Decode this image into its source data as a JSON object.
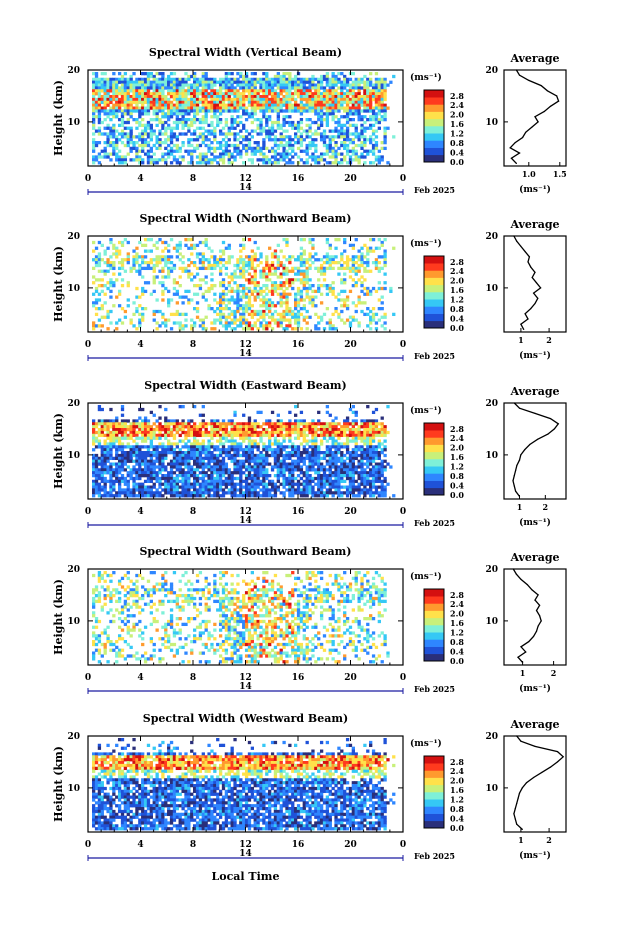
{
  "figure": {
    "date_label": "Feb 2025",
    "day_label": "14",
    "xlabel": "Local Time",
    "colorbar_unit": "(ms⁻¹)",
    "colorbar_ticks": [
      "0.0",
      "0.4",
      "0.8",
      "1.2",
      "1.6",
      "2.0",
      "2.4",
      "2.8"
    ],
    "colors": [
      "#2a2f7a",
      "#1f52d8",
      "#2e86ff",
      "#35c8f5",
      "#7ef0d8",
      "#c8f07a",
      "#ffe14a",
      "#ff9a2e",
      "#ff3a1e",
      "#d41010"
    ]
  },
  "chart_data": [
    {
      "type": "heatmap",
      "title": "Spectral Width (Vertical Beam)",
      "ylabel": "Height (km)",
      "x_ticks": [
        "0",
        "4",
        "8",
        "12",
        "16",
        "20",
        "0"
      ],
      "y_ticks": [
        "20",
        "10"
      ],
      "xlim": [
        0,
        24
      ],
      "ylim": [
        1.5,
        20
      ],
      "zlim": [
        0,
        3.0
      ],
      "profile": {
        "title": "Average",
        "xlabel": "(ms⁻¹)",
        "x_ticks": [
          "1.0",
          "1.5"
        ],
        "y_ticks": [
          "20",
          "10"
        ],
        "xlim": [
          0.6,
          1.6
        ],
        "points": [
          [
            0.8,
            2
          ],
          [
            0.72,
            3
          ],
          [
            0.85,
            4
          ],
          [
            0.7,
            5
          ],
          [
            0.78,
            6
          ],
          [
            0.9,
            7
          ],
          [
            0.95,
            8
          ],
          [
            1.05,
            9
          ],
          [
            1.15,
            10
          ],
          [
            1.1,
            11
          ],
          [
            1.25,
            12
          ],
          [
            1.35,
            13
          ],
          [
            1.48,
            14
          ],
          [
            1.45,
            15
          ],
          [
            1.3,
            16
          ],
          [
            1.2,
            17
          ],
          [
            1.0,
            18
          ],
          [
            0.85,
            19
          ],
          [
            0.8,
            20
          ]
        ]
      }
    },
    {
      "type": "heatmap",
      "title": "Spectral Width (Northward Beam)",
      "ylabel": "Height (km)",
      "x_ticks": [
        "0",
        "4",
        "8",
        "12",
        "16",
        "20",
        "0"
      ],
      "y_ticks": [
        "20",
        "10"
      ],
      "xlim": [
        0,
        24
      ],
      "ylim": [
        1.5,
        20
      ],
      "zlim": [
        0,
        3.0
      ],
      "profile": {
        "title": "Average",
        "xlabel": "(ms⁻¹)",
        "x_ticks": [
          "1",
          "2"
        ],
        "y_ticks": [
          "20",
          "10"
        ],
        "xlim": [
          0.4,
          2.6
        ],
        "points": [
          [
            1.1,
            2
          ],
          [
            1.0,
            3
          ],
          [
            1.25,
            4
          ],
          [
            1.15,
            5
          ],
          [
            1.35,
            6
          ],
          [
            1.5,
            7
          ],
          [
            1.6,
            8
          ],
          [
            1.45,
            9
          ],
          [
            1.7,
            10
          ],
          [
            1.55,
            11
          ],
          [
            1.4,
            12
          ],
          [
            1.5,
            13
          ],
          [
            1.35,
            14
          ],
          [
            1.25,
            15
          ],
          [
            1.3,
            16
          ],
          [
            1.15,
            17
          ],
          [
            1.0,
            18
          ],
          [
            0.85,
            19
          ],
          [
            0.75,
            20
          ]
        ]
      }
    },
    {
      "type": "heatmap",
      "title": "Spectral Width (Eastward Beam)",
      "ylabel": "Height (km)",
      "x_ticks": [
        "0",
        "4",
        "8",
        "12",
        "16",
        "20",
        "0"
      ],
      "y_ticks": [
        "20",
        "10"
      ],
      "xlim": [
        0,
        24
      ],
      "ylim": [
        1.5,
        20
      ],
      "zlim": [
        0,
        3.0
      ],
      "profile": {
        "title": "Average",
        "xlabel": "(ms⁻¹)",
        "x_ticks": [
          "1",
          "2"
        ],
        "y_ticks": [
          "20",
          "10"
        ],
        "xlim": [
          0.4,
          2.8
        ],
        "points": [
          [
            1.0,
            2
          ],
          [
            0.85,
            3
          ],
          [
            0.8,
            4
          ],
          [
            0.75,
            5
          ],
          [
            0.8,
            6
          ],
          [
            0.85,
            7
          ],
          [
            0.9,
            8
          ],
          [
            1.0,
            9
          ],
          [
            1.05,
            10
          ],
          [
            1.2,
            11
          ],
          [
            1.4,
            12
          ],
          [
            1.7,
            13
          ],
          [
            2.1,
            14
          ],
          [
            2.35,
            15
          ],
          [
            2.5,
            16
          ],
          [
            2.2,
            17
          ],
          [
            1.6,
            18
          ],
          [
            1.0,
            19
          ],
          [
            0.8,
            20
          ]
        ]
      }
    },
    {
      "type": "heatmap",
      "title": "Spectral Width (Southward Beam)",
      "ylabel": "Height (km)",
      "x_ticks": [
        "0",
        "4",
        "8",
        "12",
        "16",
        "20",
        "0"
      ],
      "y_ticks": [
        "20",
        "10"
      ],
      "xlim": [
        0,
        24
      ],
      "ylim": [
        1.5,
        20
      ],
      "zlim": [
        0,
        3.0
      ],
      "profile": {
        "title": "Average",
        "xlabel": "(ms⁻¹)",
        "x_ticks": [
          "1",
          "2"
        ],
        "y_ticks": [
          "20",
          "10"
        ],
        "xlim": [
          0.4,
          2.4
        ],
        "points": [
          [
            1.0,
            2
          ],
          [
            0.85,
            3
          ],
          [
            1.1,
            4
          ],
          [
            0.95,
            5
          ],
          [
            1.2,
            6
          ],
          [
            1.35,
            7
          ],
          [
            1.45,
            8
          ],
          [
            1.5,
            9
          ],
          [
            1.6,
            10
          ],
          [
            1.55,
            11
          ],
          [
            1.45,
            12
          ],
          [
            1.55,
            13
          ],
          [
            1.4,
            14
          ],
          [
            1.5,
            15
          ],
          [
            1.3,
            16
          ],
          [
            1.15,
            17
          ],
          [
            0.95,
            18
          ],
          [
            0.8,
            19
          ],
          [
            0.7,
            20
          ]
        ]
      }
    },
    {
      "type": "heatmap",
      "title": "Spectral Width (Westward Beam)",
      "ylabel": "Height (km)",
      "x_ticks": [
        "0",
        "4",
        "8",
        "12",
        "16",
        "20",
        "0"
      ],
      "y_ticks": [
        "20",
        "10"
      ],
      "xlim": [
        0,
        24
      ],
      "ylim": [
        1.5,
        20
      ],
      "zlim": [
        0,
        3.0
      ],
      "profile": {
        "title": "Average",
        "xlabel": "(ms⁻¹)",
        "x_ticks": [
          "1",
          "2"
        ],
        "y_ticks": [
          "20",
          "10"
        ],
        "xlim": [
          0.4,
          2.6
        ],
        "points": [
          [
            1.05,
            2
          ],
          [
            0.85,
            3
          ],
          [
            0.8,
            4
          ],
          [
            0.75,
            5
          ],
          [
            0.8,
            6
          ],
          [
            0.85,
            7
          ],
          [
            0.9,
            8
          ],
          [
            0.95,
            9
          ],
          [
            1.05,
            10
          ],
          [
            1.2,
            11
          ],
          [
            1.45,
            12
          ],
          [
            1.75,
            13
          ],
          [
            2.05,
            14
          ],
          [
            2.3,
            15
          ],
          [
            2.5,
            16
          ],
          [
            2.3,
            17
          ],
          [
            1.5,
            18
          ],
          [
            1.0,
            19
          ],
          [
            0.85,
            20
          ]
        ]
      }
    }
  ]
}
